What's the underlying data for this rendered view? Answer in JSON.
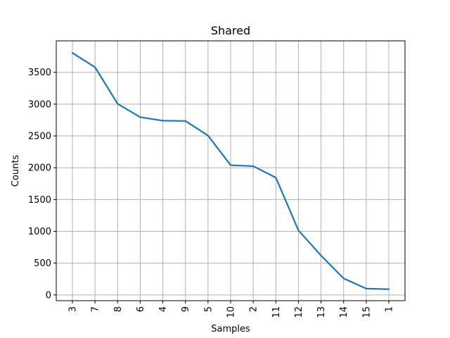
{
  "chart_data": {
    "type": "line",
    "title": "Shared",
    "xlabel": "Samples",
    "ylabel": "Counts",
    "categories": [
      "3",
      "7",
      "8",
      "6",
      "4",
      "9",
      "5",
      "10",
      "2",
      "11",
      "12",
      "13",
      "14",
      "15",
      "1"
    ],
    "series": [
      {
        "values": [
          3805,
          3580,
          3005,
          2795,
          2740,
          2735,
          2505,
          2040,
          2025,
          1845,
          1015,
          620,
          260,
          100,
          90
        ],
        "color": "#1f77b4"
      }
    ],
    "ylim": [
      -90,
      3995
    ],
    "yticks": [
      0,
      500,
      1000,
      1500,
      2000,
      2500,
      3000,
      3500
    ],
    "grid": true,
    "legend": "none"
  }
}
